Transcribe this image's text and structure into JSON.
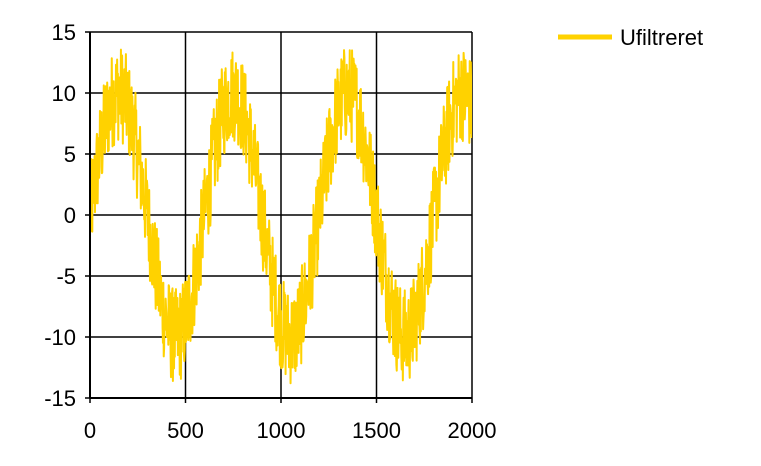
{
  "chart_data": {
    "type": "line",
    "title": "",
    "xlabel": "",
    "ylabel": "",
    "xlim": [
      0,
      2000
    ],
    "ylim": [
      -15,
      15
    ],
    "x_ticks": [
      0,
      500,
      1000,
      1500,
      2000
    ],
    "y_ticks": [
      15,
      10,
      5,
      0,
      -5,
      -10,
      -15
    ],
    "x_tick_labels": [
      "0",
      "500",
      "1000",
      "1500",
      "2000"
    ],
    "y_tick_labels": [
      "15",
      "10",
      "5",
      "0",
      "-5",
      "-10",
      "-15"
    ],
    "grid": true,
    "legend_position": "top-right, outside plot",
    "series": [
      {
        "name": "Ufiltreret",
        "color": "#FFD200",
        "signal": {
          "form": "sine plus high-frequency noise",
          "amplitude": 10,
          "period": 600,
          "offset": 0,
          "phase_at_zero": 0,
          "noise_amplitude": 4,
          "x_step": 2
        }
      }
    ]
  }
}
